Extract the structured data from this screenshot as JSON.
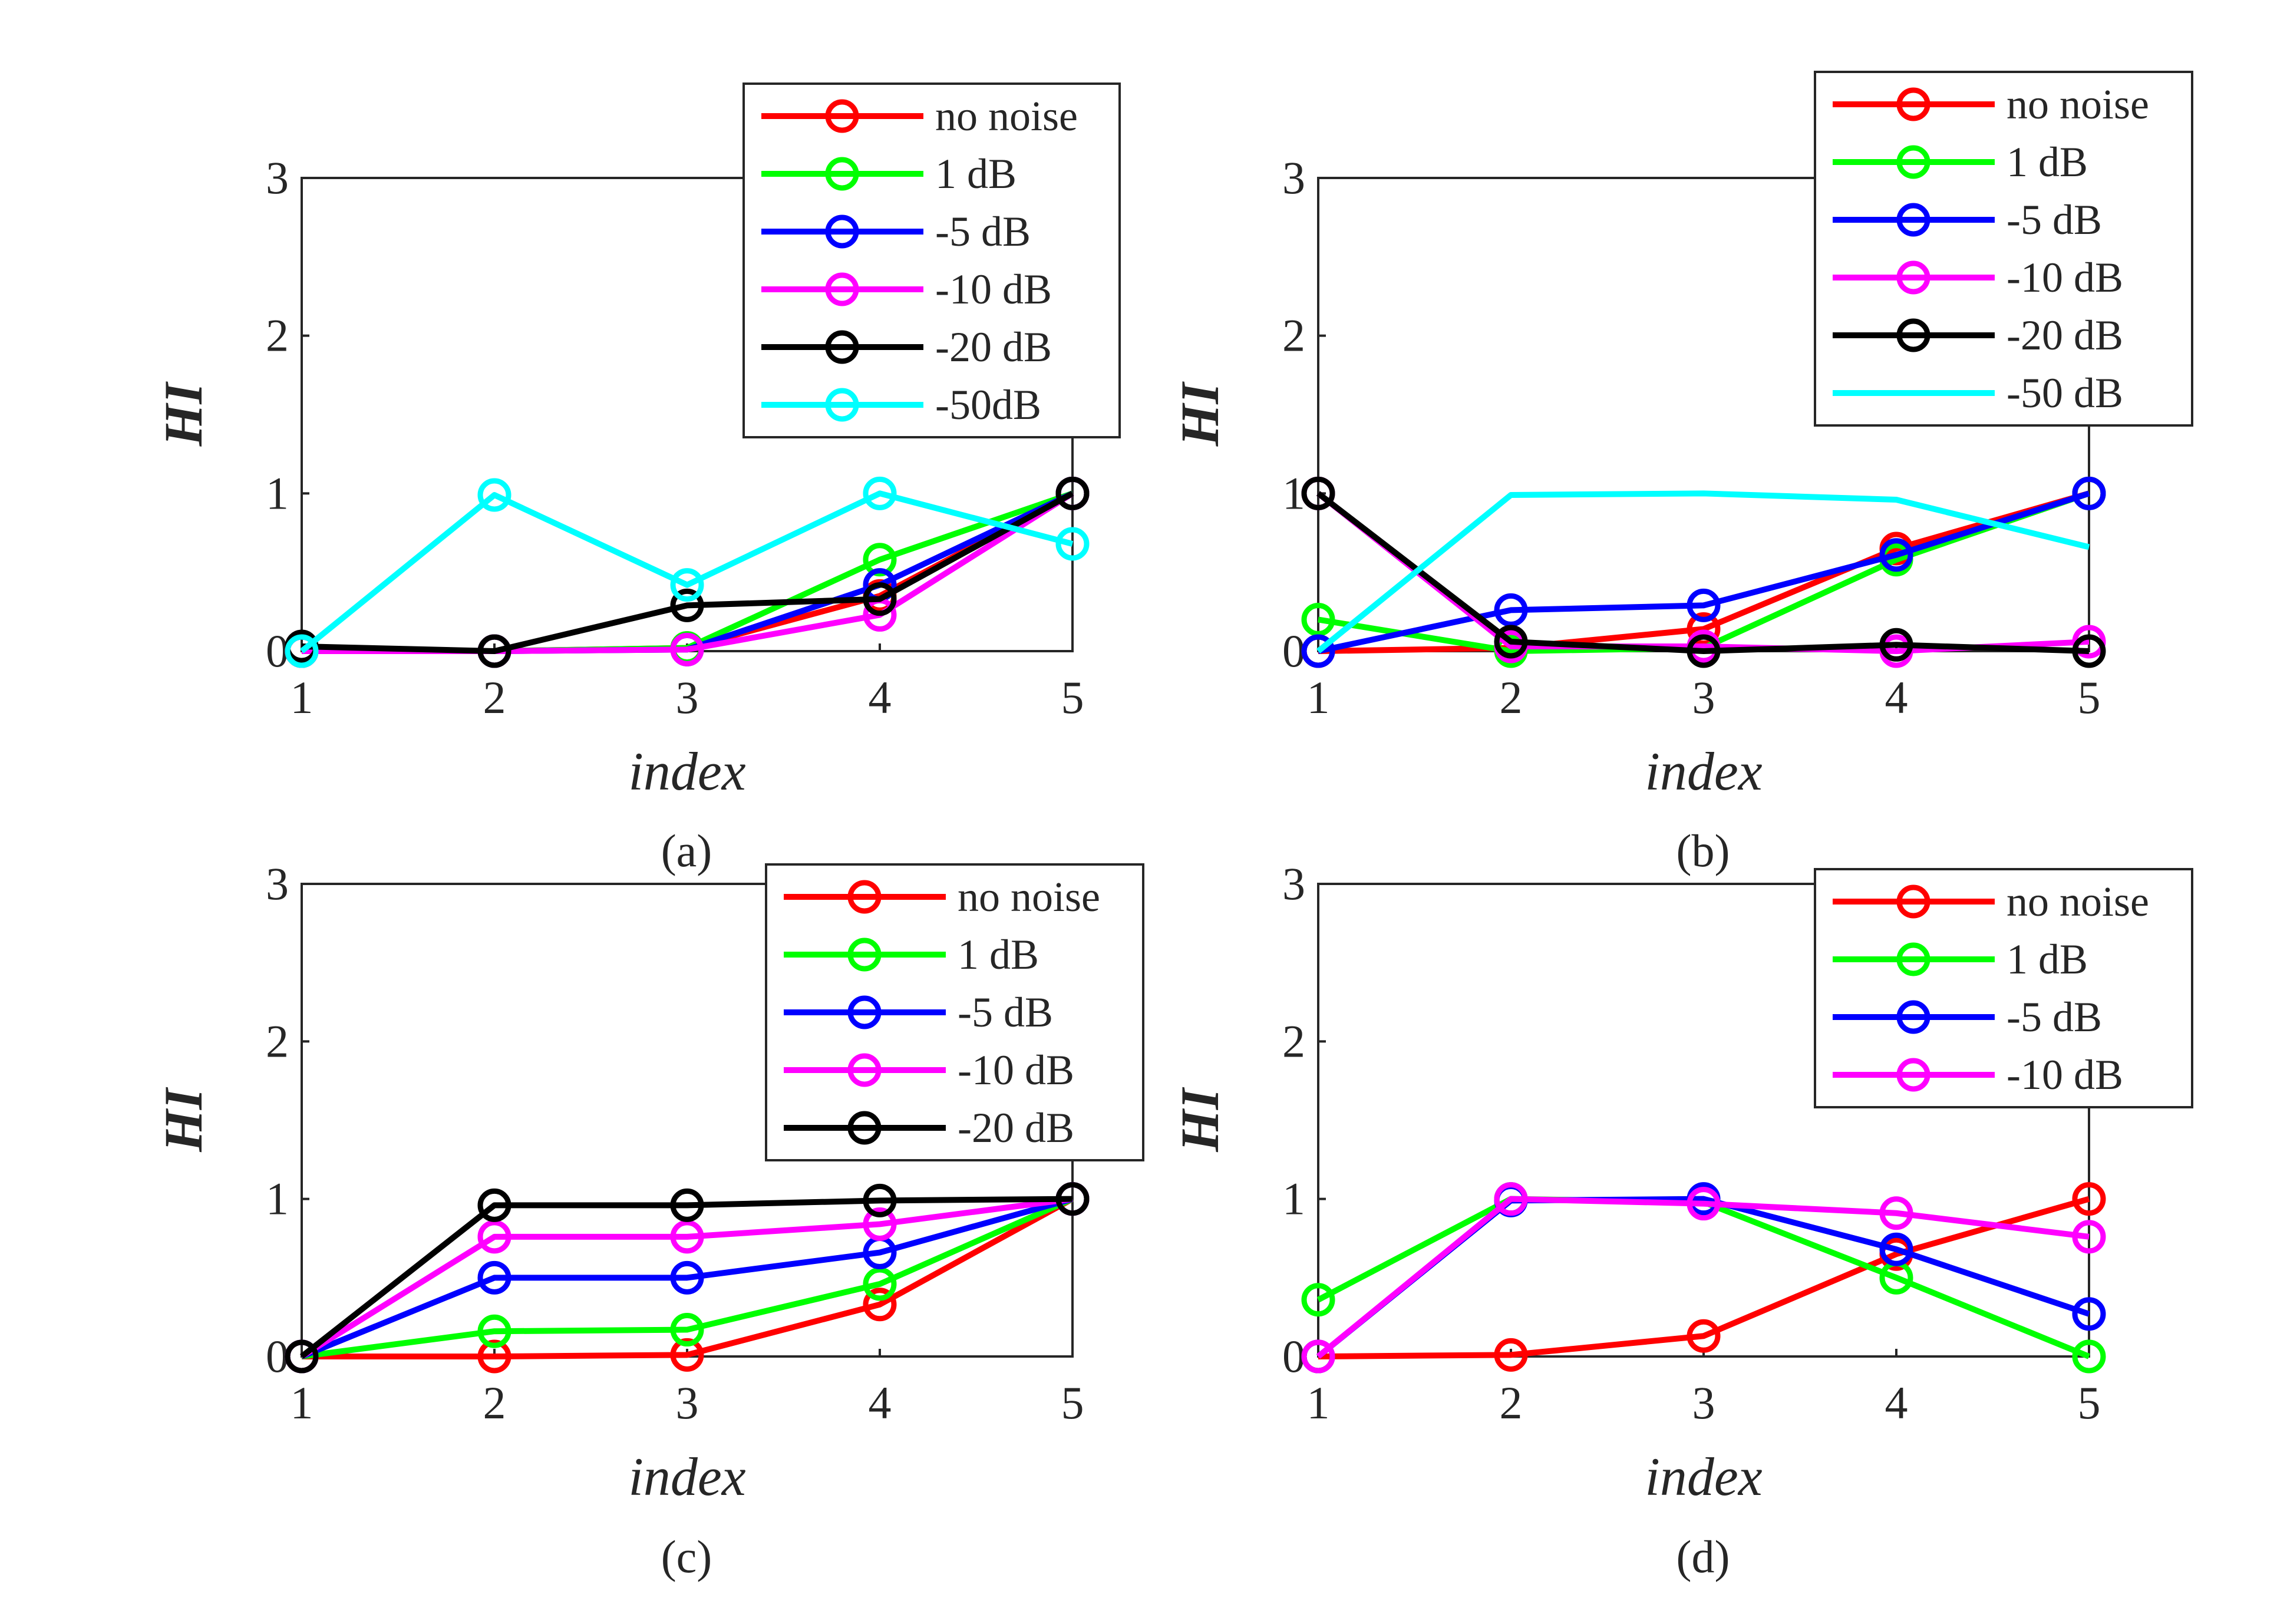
{
  "colors": {
    "no noise": "#ff0000",
    "1 dB": "#00ff00",
    "-5 dB": "#0000ff",
    "-10 dB": "#ff00ff",
    "-20 dB": "#000000",
    "-50dB": "#00ffff",
    "-50 dB": "#00ffff"
  },
  "chart_data": [
    {
      "type": "line",
      "caption": "(a)",
      "xlabel": "index",
      "ylabel": "HI",
      "x": [
        1,
        2,
        3,
        4,
        5
      ],
      "xlim": [
        1,
        5
      ],
      "ylim": [
        0,
        3
      ],
      "xticks": [
        "1",
        "2",
        "3",
        "4",
        "5"
      ],
      "yticks": [
        "0",
        "1",
        "2",
        "3"
      ],
      "legend": "top-right",
      "series": [
        {
          "name": "no noise",
          "color": "#ff0000",
          "markers": true,
          "values": [
            0,
            0,
            0.02,
            0.35,
            1
          ]
        },
        {
          "name": "1 dB",
          "color": "#00ff00",
          "markers": true,
          "values": [
            0,
            0,
            0.02,
            0.58,
            1
          ]
        },
        {
          "name": "-5 dB",
          "color": "#0000ff",
          "markers": true,
          "values": [
            0,
            0,
            0.01,
            0.42,
            1
          ]
        },
        {
          "name": "-10 dB",
          "color": "#ff00ff",
          "markers": true,
          "values": [
            0,
            0,
            0.01,
            0.23,
            1
          ]
        },
        {
          "name": "-20 dB",
          "color": "#000000",
          "markers": true,
          "values": [
            0.03,
            0,
            0.29,
            0.33,
            1
          ]
        },
        {
          "name": "-50dB",
          "color": "#00ffff",
          "markers": true,
          "values": [
            0,
            0.99,
            0.42,
            1,
            0.68
          ]
        }
      ]
    },
    {
      "type": "line",
      "caption": "(b)",
      "xlabel": "index",
      "ylabel": "HI",
      "x": [
        1,
        2,
        3,
        4,
        5
      ],
      "xlim": [
        1,
        5
      ],
      "ylim": [
        0,
        3
      ],
      "xticks": [
        "1",
        "2",
        "3",
        "4",
        "5"
      ],
      "yticks": [
        "0",
        "1",
        "2",
        "3"
      ],
      "legend": "top-right",
      "series": [
        {
          "name": "no noise",
          "color": "#ff0000",
          "markers": true,
          "values": [
            0,
            0.02,
            0.14,
            0.65,
            1
          ]
        },
        {
          "name": "1 dB",
          "color": "#00ff00",
          "markers": true,
          "values": [
            0.2,
            0,
            0.02,
            0.58,
            1
          ]
        },
        {
          "name": "-5 dB",
          "color": "#0000ff",
          "markers": true,
          "values": [
            0,
            0.26,
            0.29,
            0.61,
            1
          ]
        },
        {
          "name": "-10 dB",
          "color": "#ff00ff",
          "markers": true,
          "values": [
            1,
            0.03,
            0.03,
            0,
            0.06
          ]
        },
        {
          "name": "-20 dB",
          "color": "#000000",
          "markers": true,
          "values": [
            1,
            0.06,
            0,
            0.04,
            0
          ]
        },
        {
          "name": "-50 dB",
          "color": "#00ffff",
          "markers": false,
          "values": [
            0,
            0.99,
            1,
            0.96,
            0.66
          ]
        }
      ]
    },
    {
      "type": "line",
      "caption": "(c)",
      "xlabel": "index",
      "ylabel": "HI",
      "x": [
        1,
        2,
        3,
        4,
        5
      ],
      "xlim": [
        1,
        5
      ],
      "ylim": [
        0,
        3
      ],
      "xticks": [
        "1",
        "2",
        "3",
        "4",
        "5"
      ],
      "yticks": [
        "0",
        "1",
        "2",
        "3"
      ],
      "legend": "top-right",
      "series": [
        {
          "name": "no noise",
          "color": "#ff0000",
          "markers": true,
          "values": [
            0,
            0,
            0.01,
            0.33,
            1
          ]
        },
        {
          "name": "1 dB",
          "color": "#00ff00",
          "markers": true,
          "values": [
            0,
            0.16,
            0.17,
            0.46,
            1
          ]
        },
        {
          "name": "-5 dB",
          "color": "#0000ff",
          "markers": true,
          "values": [
            0,
            0.5,
            0.5,
            0.66,
            1
          ]
        },
        {
          "name": "-10 dB",
          "color": "#ff00ff",
          "markers": true,
          "values": [
            0,
            0.76,
            0.76,
            0.84,
            1
          ]
        },
        {
          "name": "-20 dB",
          "color": "#000000",
          "markers": true,
          "values": [
            0,
            0.96,
            0.96,
            0.99,
            1
          ]
        }
      ]
    },
    {
      "type": "line",
      "caption": "(d)",
      "xlabel": "index",
      "ylabel": "HI",
      "x": [
        1,
        2,
        3,
        4,
        5
      ],
      "xlim": [
        1,
        5
      ],
      "ylim": [
        0,
        3
      ],
      "xticks": [
        "1",
        "2",
        "3",
        "4",
        "5"
      ],
      "yticks": [
        "0",
        "1",
        "2",
        "3"
      ],
      "legend": "top-right",
      "series": [
        {
          "name": "no noise",
          "color": "#ff0000",
          "markers": true,
          "values": [
            0,
            0.01,
            0.13,
            0.65,
            1
          ]
        },
        {
          "name": "1 dB",
          "color": "#00ff00",
          "markers": true,
          "values": [
            0.36,
            1,
            0.98,
            0.5,
            0
          ]
        },
        {
          "name": "-5 dB",
          "color": "#0000ff",
          "markers": true,
          "values": [
            0,
            0.99,
            1,
            0.68,
            0.27
          ]
        },
        {
          "name": "-10 dB",
          "color": "#ff00ff",
          "markers": true,
          "values": [
            0,
            1,
            0.97,
            0.91,
            0.76
          ]
        }
      ]
    }
  ]
}
